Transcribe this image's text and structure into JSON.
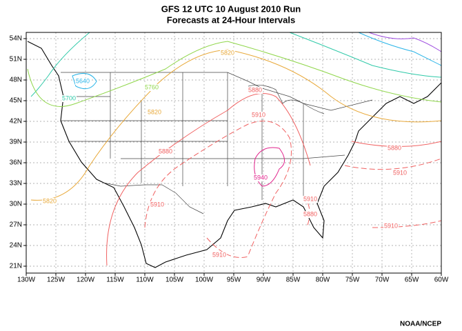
{
  "header": {
    "title": "GFS 12 UTC 10 August 2010 Run",
    "subtitle": "Forecasts at 24-Hour Intervals"
  },
  "map": {
    "lat_labels": [
      "54N",
      "51N",
      "48N",
      "45N",
      "42N",
      "39N",
      "36N",
      "33N",
      "30N",
      "27N",
      "24N",
      "21N"
    ],
    "lon_labels": [
      "130W",
      "125W",
      "120W",
      "115W",
      "110W",
      "105W",
      "100W",
      "95W",
      "90W",
      "85W",
      "80W",
      "75W",
      "70W",
      "65W",
      "60W"
    ],
    "contour_labels": [
      "5640",
      "5700",
      "5760",
      "5820",
      "5820",
      "5820",
      "5880",
      "5880",
      "5880",
      "5910",
      "5910",
      "5910",
      "5910",
      "5910",
      "5910",
      "5880",
      "5940"
    ]
  },
  "footer": {
    "credit": "NOAA/NCEP"
  }
}
